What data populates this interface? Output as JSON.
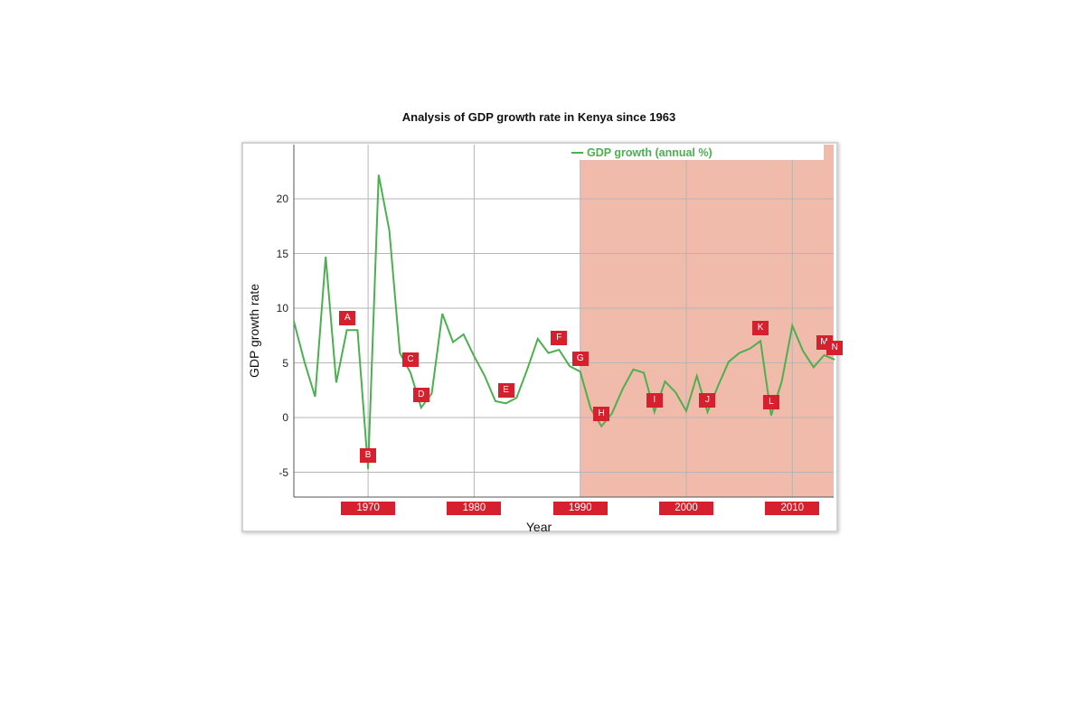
{
  "chart": {
    "title": "Analysis of GDP growth rate in Kenya since 1963",
    "xlabel": "Year",
    "ylabel": "GDP growth rate",
    "legend_label": "GDP growth (annual %)",
    "colors": {
      "line": "#4caf50",
      "shade": "#f0bbaa",
      "marker": "#d6202e",
      "grid": "#b5b5b5"
    }
  },
  "chart_data": {
    "type": "line",
    "title": "Analysis of GDP growth rate in Kenya since 1963",
    "xlabel": "Year",
    "ylabel": "GDP growth rate",
    "xlim": [
      1963,
      2014
    ],
    "ylim": [
      -7.3,
      25
    ],
    "grid": true,
    "legend_position": "top-right",
    "x_ticks": [
      1970,
      1980,
      1990,
      2000,
      2010
    ],
    "y_ticks": [
      -5,
      0,
      5,
      10,
      15,
      20
    ],
    "shaded_region": {
      "x_start": 1990,
      "x_end": 2014
    },
    "x": [
      1963,
      1964,
      1965,
      1966,
      1967,
      1968,
      1969,
      1970,
      1971,
      1972,
      1973,
      1974,
      1975,
      1976,
      1977,
      1978,
      1979,
      1980,
      1981,
      1982,
      1983,
      1984,
      1985,
      1986,
      1987,
      1988,
      1989,
      1990,
      1991,
      1992,
      1993,
      1994,
      1995,
      1996,
      1997,
      1998,
      1999,
      2000,
      2001,
      2002,
      2003,
      2004,
      2005,
      2006,
      2007,
      2008,
      2009,
      2010,
      2011,
      2012,
      2013,
      2014
    ],
    "series": [
      {
        "name": "GDP growth (annual %)",
        "values": [
          8.8,
          5.1,
          1.9,
          14.7,
          3.2,
          8.0,
          8.0,
          -4.7,
          22.2,
          17.1,
          5.9,
          4.1,
          0.9,
          2.2,
          9.5,
          6.9,
          7.6,
          5.6,
          3.8,
          1.5,
          1.3,
          1.8,
          4.4,
          7.2,
          5.9,
          6.2,
          4.7,
          4.2,
          0.8,
          -0.8,
          0.4,
          2.6,
          4.4,
          4.1,
          0.5,
          3.3,
          2.3,
          0.6,
          3.8,
          0.5,
          2.9,
          5.1,
          5.9,
          6.3,
          7.0,
          0.2,
          3.3,
          8.4,
          6.1,
          4.6,
          5.7,
          5.3
        ]
      }
    ],
    "annotations": [
      {
        "label": "A",
        "x": 1969,
        "y": 9.1
      },
      {
        "label": "B",
        "x": 1970,
        "y": -3.5
      },
      {
        "label": "C",
        "x": 1974,
        "y": 5.3
      },
      {
        "label": "D",
        "x": 1975,
        "y": 2.1
      },
      {
        "label": "E",
        "x": 1983,
        "y": 2.5
      },
      {
        "label": "F",
        "x": 1988,
        "y": 7.3
      },
      {
        "label": "G",
        "x": 1990,
        "y": 5.4
      },
      {
        "label": "H",
        "x": 1992,
        "y": 0.3
      },
      {
        "label": "I",
        "x": 1997,
        "y": 1.6
      },
      {
        "label": "J",
        "x": 2002,
        "y": 1.6
      },
      {
        "label": "K",
        "x": 2007,
        "y": 8.2
      },
      {
        "label": "L",
        "x": 2008,
        "y": 1.4
      },
      {
        "label": "M",
        "x": 2013,
        "y": 6.9
      },
      {
        "label": "N",
        "x": 2014,
        "y": 6.4
      }
    ]
  }
}
